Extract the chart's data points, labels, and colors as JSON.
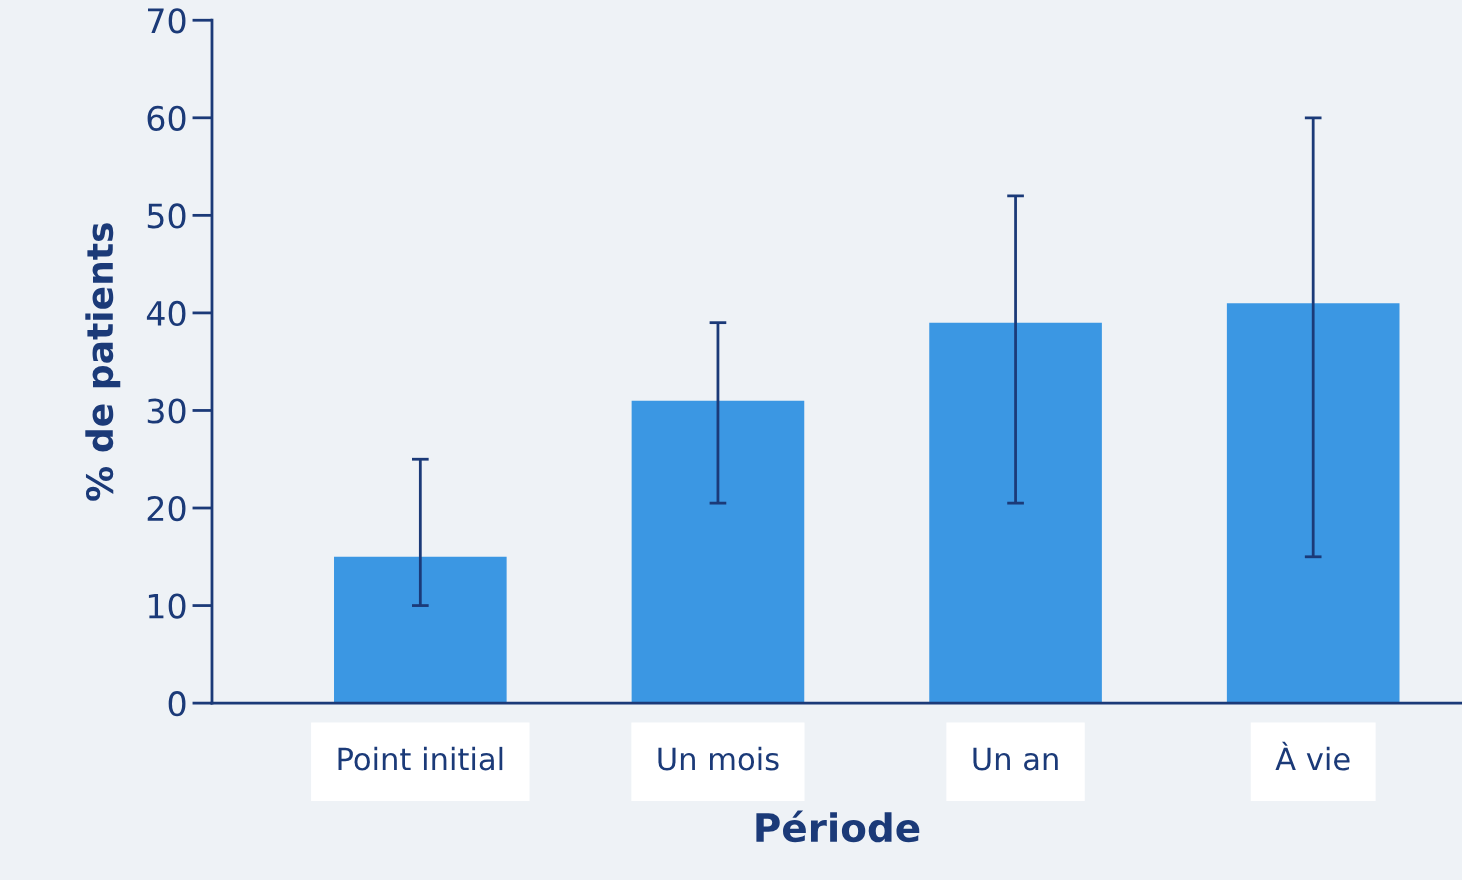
{
  "chart_data": {
    "type": "bar",
    "xlabel": "Période",
    "ylabel": "% de patients",
    "categories": [
      "Point initial",
      "Un mois",
      "Un an",
      "À vie"
    ],
    "values": [
      15,
      31,
      39,
      41
    ],
    "errors": [
      [
        10,
        25
      ],
      [
        20.5,
        39
      ],
      [
        20.5,
        52
      ],
      [
        15,
        60
      ]
    ],
    "color": "#3b97e3",
    "ylim": [
      0,
      70
    ],
    "yticks": [
      0,
      10,
      20,
      30,
      40,
      50,
      60,
      70
    ],
    "grid": false
  }
}
